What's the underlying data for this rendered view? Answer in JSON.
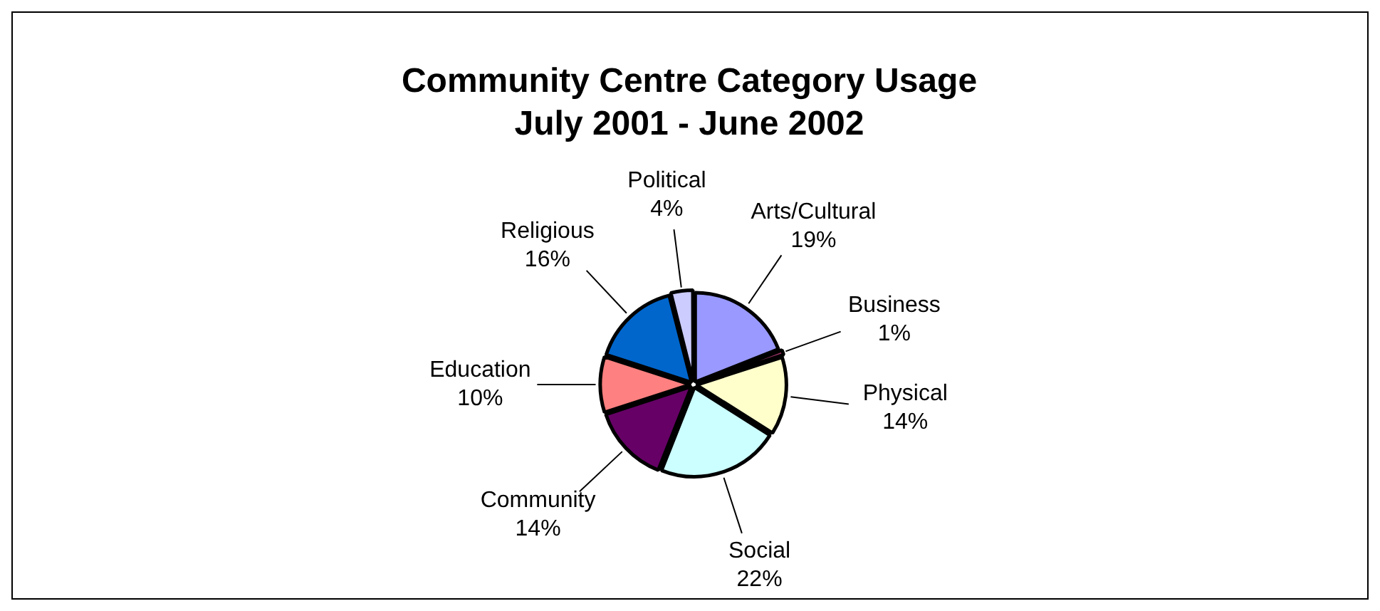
{
  "chart_data": {
    "type": "pie",
    "title": "Community Centre Category Usage",
    "subtitle": "July 2001 - June 2002",
    "categories": [
      "Arts/Cultural",
      "Business",
      "Physical",
      "Social",
      "Community",
      "Education",
      "Religious",
      "Political"
    ],
    "values": [
      19,
      1,
      14,
      22,
      14,
      10,
      16,
      4
    ],
    "value_labels": [
      "19%",
      "1%",
      "14%",
      "22%",
      "14%",
      "10%",
      "16%",
      "4%"
    ],
    "colors": [
      "#9999ff",
      "#993366",
      "#ffffcc",
      "#ccffff",
      "#660066",
      "#ff8080",
      "#0066cc",
      "#ccccff"
    ],
    "legend": false
  }
}
